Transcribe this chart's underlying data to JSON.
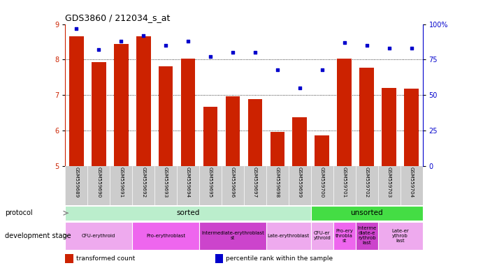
{
  "title": "GDS3860 / 212034_s_at",
  "samples": [
    "GSM559689",
    "GSM559690",
    "GSM559691",
    "GSM559692",
    "GSM559693",
    "GSM559694",
    "GSM559695",
    "GSM559696",
    "GSM559697",
    "GSM559698",
    "GSM559699",
    "GSM559700",
    "GSM559701",
    "GSM559702",
    "GSM559703",
    "GSM559704"
  ],
  "bar_values": [
    8.65,
    7.93,
    8.45,
    8.65,
    7.82,
    8.02,
    6.68,
    6.97,
    6.88,
    5.97,
    6.37,
    5.87,
    8.02,
    7.78,
    7.2,
    7.18
  ],
  "dot_values": [
    97,
    82,
    88,
    92,
    85,
    88,
    77,
    80,
    80,
    68,
    55,
    68,
    87,
    85,
    83,
    83
  ],
  "ylim": [
    5,
    9
  ],
  "yticks": [
    5,
    6,
    7,
    8,
    9
  ],
  "y2ticks": [
    0,
    25,
    50,
    75,
    100
  ],
  "bar_color": "#cc2200",
  "dot_color": "#0000cc",
  "tick_area_color": "#cccccc",
  "protocol_row": [
    {
      "label": "sorted",
      "start": 0,
      "end": 11,
      "color": "#bbeecc"
    },
    {
      "label": "unsorted",
      "start": 11,
      "end": 16,
      "color": "#44dd44"
    }
  ],
  "dev_stage_row": [
    {
      "label": "CFU-erythroid",
      "start": 0,
      "end": 3,
      "color": "#eeaaee"
    },
    {
      "label": "Pro-erythroblast",
      "start": 3,
      "end": 6,
      "color": "#ee66ee"
    },
    {
      "label": "Intermediate-erythroblast\nst",
      "start": 6,
      "end": 9,
      "color": "#cc44cc"
    },
    {
      "label": "Late-erythroblast",
      "start": 9,
      "end": 11,
      "color": "#eeaaee"
    },
    {
      "label": "CFU-er\nythroid",
      "start": 11,
      "end": 12,
      "color": "#eeaaee"
    },
    {
      "label": "Pro-ery\nthrobla\nst",
      "start": 12,
      "end": 13,
      "color": "#ee66ee"
    },
    {
      "label": "Interme\ndiate-e\nrythrob\nlast",
      "start": 13,
      "end": 14,
      "color": "#cc44cc"
    },
    {
      "label": "Late-er\nythrob\nlast",
      "start": 14,
      "end": 16,
      "color": "#eeaaee"
    }
  ],
  "legend_items": [
    {
      "label": "transformed count",
      "color": "#cc2200"
    },
    {
      "label": "percentile rank within the sample",
      "color": "#0000cc"
    }
  ]
}
